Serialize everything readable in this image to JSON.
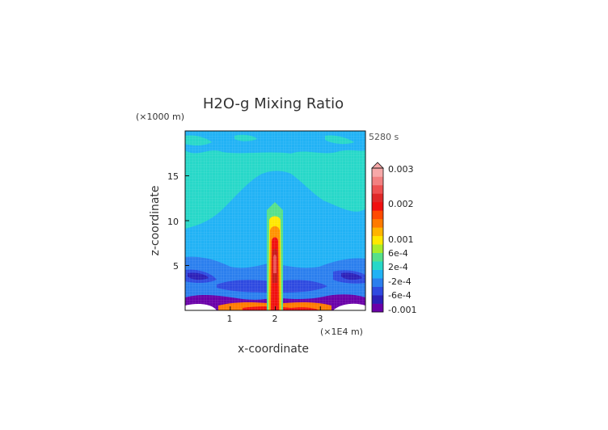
{
  "chart_data": {
    "type": "heatmap",
    "title": "H2O-g Mixing Ratio",
    "time_label": "5280 s",
    "xlabel": "x-coordinate",
    "ylabel": "z-coordinate",
    "x_unit": "(×1E4 m)",
    "y_unit": "(×1000 m)",
    "xlim": [
      0,
      4
    ],
    "ylim": [
      0,
      20
    ],
    "x_ticks": [
      "1",
      "2",
      "3"
    ],
    "x_tick_values": [
      1,
      2,
      3
    ],
    "y_ticks": [
      "5",
      "10",
      "15"
    ],
    "y_tick_values": [
      5,
      10,
      15
    ],
    "colorbar": {
      "labels": [
        "0.003",
        "0.002",
        "0.001",
        "6e-4",
        "2e-4",
        "-2e-4",
        "-6e-4",
        "-0.001"
      ],
      "colors": [
        "#6a00a8",
        "#2c20b8",
        "#2e4ae0",
        "#2b7fee",
        "#21b2f5",
        "#27d8c8",
        "#55e08a",
        "#a8ec2a",
        "#ffe800",
        "#ffb400",
        "#ff7a00",
        "#ff4a00",
        "#f01010",
        "#e02828",
        "#ee5050",
        "#f28080",
        "#f7a8a8"
      ]
    }
  }
}
